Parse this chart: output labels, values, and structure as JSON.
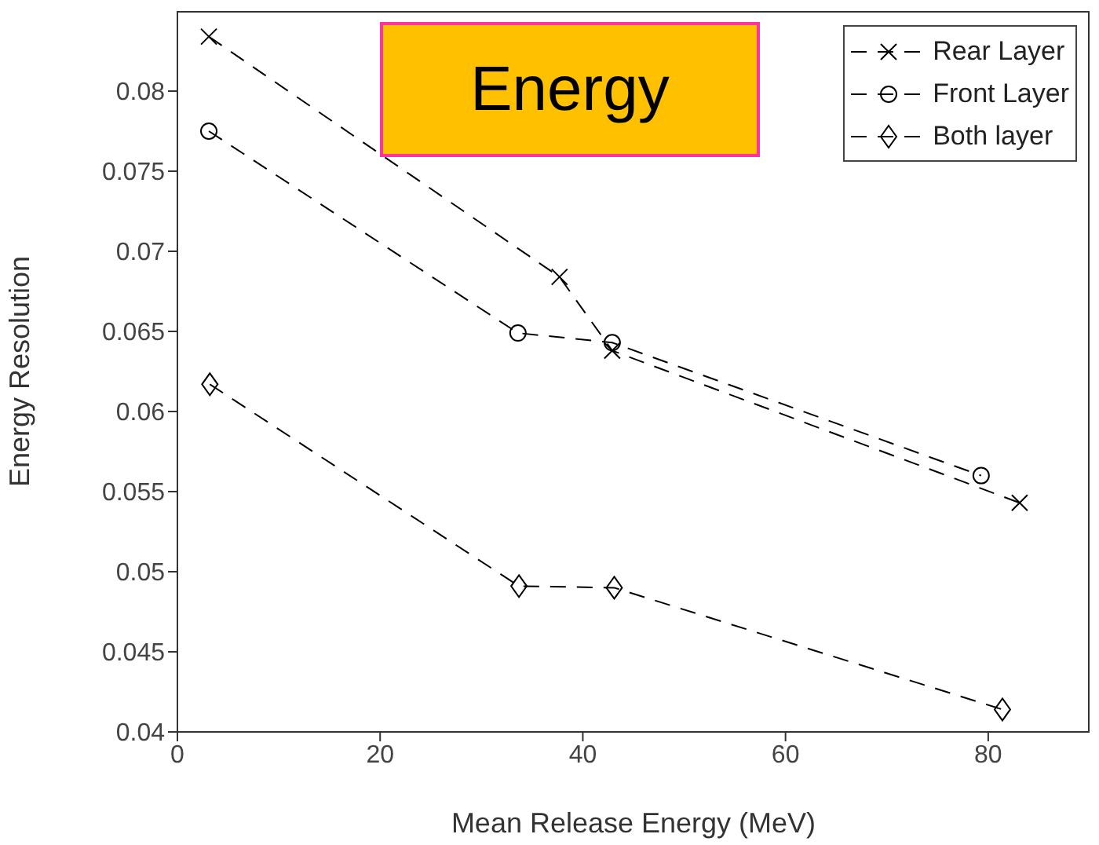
{
  "chart_data": {
    "type": "line",
    "title": "Energy",
    "xlabel": "Mean Release Energy (MeV)",
    "ylabel": "Energy Resolution",
    "xlim": [
      0,
      90
    ],
    "xticks": [
      0,
      20,
      40,
      60,
      80
    ],
    "ylim": [
      0.04,
      0.085
    ],
    "yticks": [
      0.04,
      0.045,
      0.05,
      0.055,
      0.06,
      0.065,
      0.07,
      0.075,
      0.08
    ],
    "grid": false,
    "legend": "top right",
    "line_style": "dashed",
    "series": [
      {
        "name": "Rear Layer",
        "color": "#000000",
        "marker": "cross",
        "x": [
          3.1,
          37.7,
          42.9,
          83.1
        ],
        "values": [
          0.0834,
          0.0684,
          0.0638,
          0.0543
        ]
      },
      {
        "name": "Front Layer",
        "color": "#000000",
        "marker": "circle",
        "x": [
          3.1,
          33.6,
          42.9,
          79.3
        ],
        "values": [
          0.0775,
          0.0649,
          0.0643,
          0.056
        ]
      },
      {
        "name": "Both layer",
        "color": "#000000",
        "marker": "diamond",
        "x": [
          3.2,
          33.7,
          43.1,
          81.4
        ],
        "values": [
          0.0617,
          0.0491,
          0.049,
          0.0414
        ]
      }
    ]
  }
}
